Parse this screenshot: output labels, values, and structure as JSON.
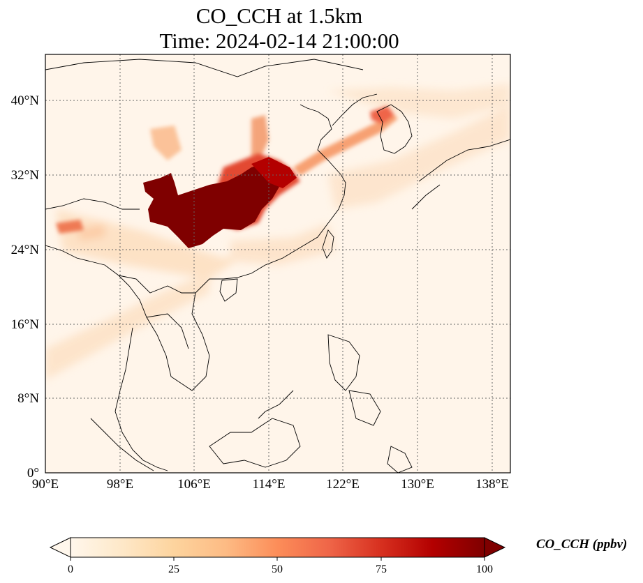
{
  "title": {
    "line1": "CO_CCH at 1.5km",
    "line2": "Time: 2024-02-14 21:00:00"
  },
  "map": {
    "lon_range": [
      90,
      140
    ],
    "lat_range": [
      0,
      45
    ],
    "lon_ticks": [
      "90°E",
      "98°E",
      "106°E",
      "114°E",
      "122°E",
      "130°E",
      "138°E"
    ],
    "lat_ticks": [
      "0°",
      "8°N",
      "16°N",
      "24°N",
      "32°N",
      "40°N"
    ],
    "gridlines": true,
    "colormap": "OrRd"
  },
  "colorbar": {
    "label": "CO_CCH (ppbv)",
    "ticks": [
      "0",
      "25",
      "50",
      "75",
      "100"
    ],
    "range": [
      0,
      100
    ],
    "extend": "both",
    "colors": [
      "#fff7ec",
      "#fee8c8",
      "#fdd49e",
      "#fdbb84",
      "#fc8d59",
      "#ef6548",
      "#d7301f",
      "#b30000",
      "#7f0000"
    ]
  }
}
